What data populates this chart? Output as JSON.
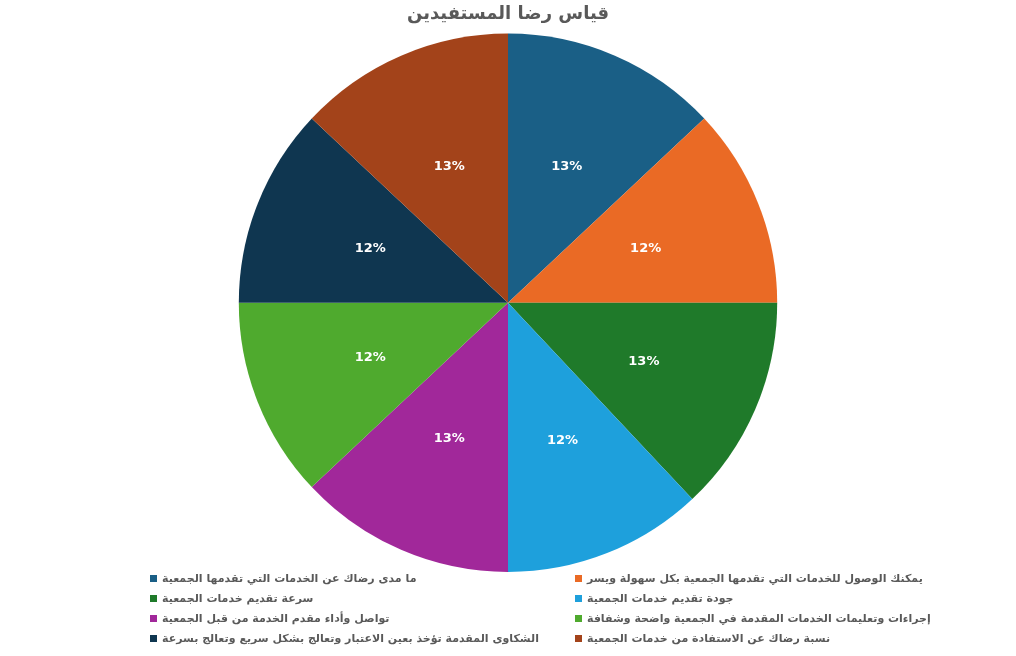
{
  "chart_data": {
    "type": "pie",
    "title": "قياس رضا المستفيدين",
    "categories": [
      "ما مدى رضاك عن الخدمات التي تقدمها الجمعية",
      "يمكنك الوصول للخدمات التي تقدمها الجمعية بكل سهولة ويسر",
      "سرعة تقديم خدمات الجمعية",
      "جودة تقديم خدمات الجمعية",
      "تواصل وأداء مقدم الخدمة من قبل الجمعية",
      "إجراءات وتعليمات الخدمات المقدمة في الجمعية واضحة وشفافة",
      "الشكاوى المقدمة تؤخذ بعين الاعتبار وتعالج بشكل سريع وتعالج بسرعة",
      "نسبة رضاك عن الاستفادة من خدمات الجمعية"
    ],
    "values": [
      13,
      12,
      13,
      12,
      13,
      12,
      12,
      13
    ],
    "colors": [
      "#1a5f86",
      "#ea6a25",
      "#1f7a2a",
      "#1ea0dc",
      "#a1289a",
      "#4faa2e",
      "#0f3650",
      "#a3431a"
    ],
    "value_labels": [
      "13%",
      "12%",
      "13%",
      "12%",
      "13%",
      "12%",
      "12%",
      "13%"
    ],
    "legend": "bottom"
  }
}
